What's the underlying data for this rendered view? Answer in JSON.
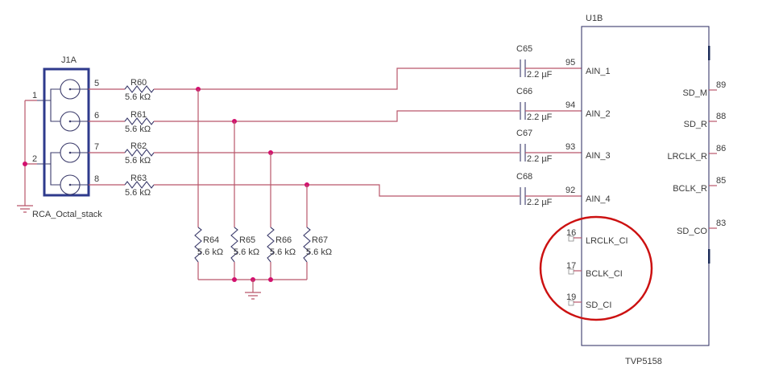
{
  "connector": {
    "ref": "J1A",
    "part": "RCA_Octal_stack",
    "pins": [
      "5",
      "6",
      "7",
      "8"
    ],
    "ground_pins": [
      "1",
      "2"
    ]
  },
  "series_resistors": [
    {
      "ref": "R60",
      "value": "5.6 kΩ"
    },
    {
      "ref": "R61",
      "value": "5.6 kΩ"
    },
    {
      "ref": "R62",
      "value": "5.6 kΩ"
    },
    {
      "ref": "R63",
      "value": "5.6 kΩ"
    }
  ],
  "shunt_resistors": [
    {
      "ref": "R64",
      "value": "5.6 kΩ"
    },
    {
      "ref": "R65",
      "value": "5.6 kΩ"
    },
    {
      "ref": "R66",
      "value": "5.6 kΩ"
    },
    {
      "ref": "R67",
      "value": "5.6 kΩ"
    }
  ],
  "capacitors": [
    {
      "ref": "C65",
      "value": "2.2 µF"
    },
    {
      "ref": "C66",
      "value": "2.2 µF"
    },
    {
      "ref": "C67",
      "value": "2.2 µF"
    },
    {
      "ref": "C68",
      "value": "2.2 µF"
    }
  ],
  "ic": {
    "ref": "U1B",
    "part": "TVP5158",
    "inputs": [
      {
        "pin": "95",
        "name": "AIN_1"
      },
      {
        "pin": "94",
        "name": "AIN_2"
      },
      {
        "pin": "93",
        "name": "AIN_3"
      },
      {
        "pin": "92",
        "name": "AIN_4"
      }
    ],
    "cascade_inputs": [
      {
        "pin": "16",
        "name": "LRCLK_CI"
      },
      {
        "pin": "17",
        "name": "BCLK_CI"
      },
      {
        "pin": "19",
        "name": "SD_CI"
      }
    ],
    "outputs": [
      {
        "pin": "89",
        "name": "SD_M"
      },
      {
        "pin": "88",
        "name": "SD_R"
      },
      {
        "pin": "86",
        "name": "LRCLK_R"
      },
      {
        "pin": "85",
        "name": "BCLK_R"
      },
      {
        "pin": "83",
        "name": "SD_CO"
      }
    ]
  },
  "highlight": {
    "color": "#cc1111",
    "target": "cascade_inputs"
  },
  "colors": {
    "wire": "#b9566a",
    "junction": "#d2106e",
    "outline": "#3b3b6b"
  }
}
